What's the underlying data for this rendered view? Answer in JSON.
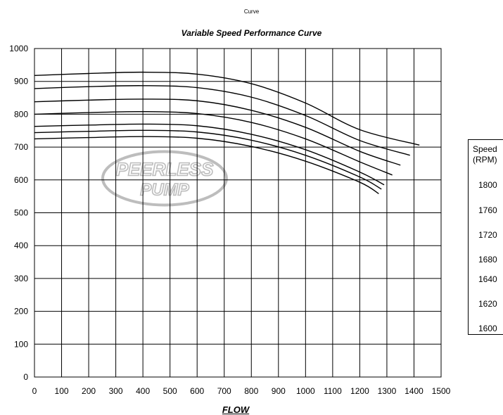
{
  "chart_data": {
    "type": "line",
    "pretitle": "Curve",
    "title": "Variable Speed Performance Curve",
    "xlabel": "FLOW",
    "ylabel": "",
    "xlim": [
      0,
      1500
    ],
    "ylim": [
      0,
      1000
    ],
    "xticks": [
      0,
      100,
      200,
      300,
      400,
      500,
      600,
      700,
      800,
      900,
      1000,
      1100,
      1200,
      1300,
      1400,
      1500
    ],
    "yticks": [
      0,
      100,
      200,
      300,
      400,
      500,
      600,
      700,
      800,
      900,
      1000
    ],
    "grid": true,
    "watermark": {
      "line1": "PEERLESS",
      "line2": "PUMP",
      "color": "#bdbdbd"
    },
    "legend": {
      "title_line1": "Speed",
      "title_line2": "(RPM)",
      "placement": "right",
      "items": [
        "1800",
        "1760",
        "1720",
        "1680",
        "1640",
        "1620",
        "1600"
      ]
    },
    "series": [
      {
        "x": [
          0,
          200,
          400,
          600,
          800,
          1000,
          1200,
          1420
        ],
        "y": [
          918,
          924,
          928,
          922,
          893,
          834,
          753,
          706
        ]
      },
      {
        "x": [
          0,
          200,
          400,
          600,
          800,
          1000,
          1200,
          1385
        ],
        "y": [
          878,
          884,
          887,
          881,
          852,
          796,
          720,
          675
        ]
      },
      {
        "x": [
          0,
          200,
          400,
          600,
          800,
          1000,
          1200,
          1350
        ],
        "y": [
          838,
          843,
          846,
          841,
          812,
          760,
          687,
          645
        ]
      },
      {
        "x": [
          0,
          200,
          400,
          600,
          800,
          1000,
          1200,
          1320
        ],
        "y": [
          800,
          805,
          808,
          802,
          775,
          725,
          655,
          615
        ]
      },
      {
        "x": [
          0,
          200,
          400,
          600,
          800,
          1000,
          1200,
          1290
        ],
        "y": [
          763,
          767,
          770,
          765,
          739,
          692,
          624,
          585
        ]
      },
      {
        "x": [
          0,
          200,
          400,
          600,
          800,
          1000,
          1200,
          1280
        ],
        "y": [
          744,
          748,
          751,
          746,
          721,
          675,
          609,
          572
        ]
      },
      {
        "x": [
          0,
          200,
          400,
          600,
          800,
          1000,
          1200,
          1270
        ],
        "y": [
          725,
          729,
          732,
          727,
          702,
          657,
          593,
          558
        ]
      }
    ]
  }
}
